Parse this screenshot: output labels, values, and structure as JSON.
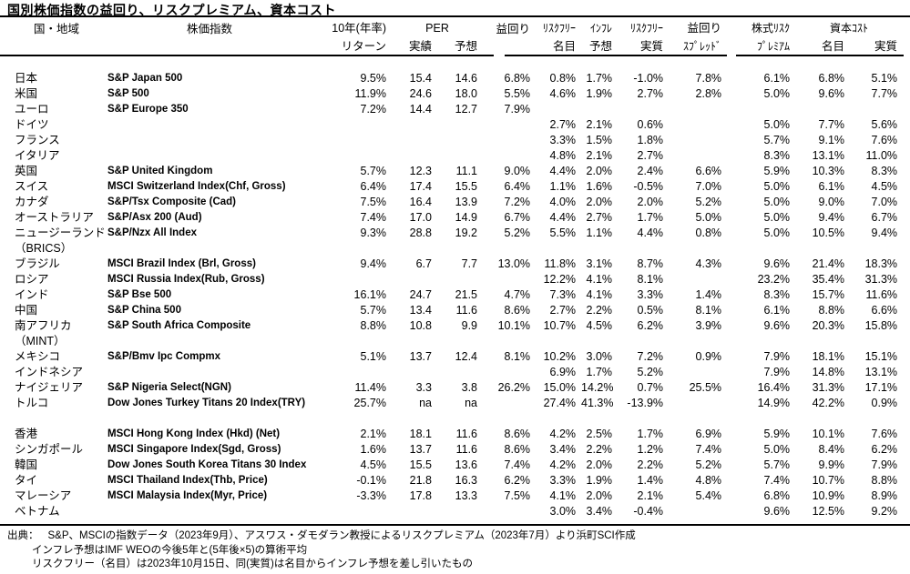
{
  "title": "国別株価指数の益回り、リスクプレミアム、資本コスト",
  "colors": {
    "text": "#000000",
    "background": "#ffffff"
  },
  "header": {
    "country": "国・地域",
    "index": "株価指数",
    "return10y_line1": "10年(年率)",
    "return10y_line2": "リターン",
    "per_group": "PER",
    "per_actual": "実績",
    "per_forecast": "予想",
    "earnings_yield": "益回り",
    "riskfree_nominal_line1": "ﾘｽｸﾌﾘｰ",
    "riskfree_nominal_line2": "名目",
    "inflation_line1": "ｲﾝﾌﾚ",
    "inflation_line2": "予想",
    "riskfree_real_line1": "ﾘｽｸﾌﾘｰ",
    "riskfree_real_line2": "実質",
    "yield_spread_line1": "益回り",
    "yield_spread_line2": "ｽﾌﾟﾚｯﾄﾞ",
    "erp_line1": "株式ﾘｽｸ",
    "erp_line2": "ﾌﾟﾚﾐｱﾑ",
    "capital_cost_group": "資本ｺｽﾄ",
    "capital_cost_nominal": "名目",
    "capital_cost_real": "実質"
  },
  "rows": [
    [
      "日本",
      "S&P Japan 500",
      "9.5%",
      "15.4",
      "14.6",
      "6.8%",
      "0.8%",
      "1.7%",
      "-1.0%",
      "7.8%",
      "6.1%",
      "6.8%",
      "5.1%"
    ],
    [
      "米国",
      "S&P 500",
      "11.9%",
      "24.6",
      "18.0",
      "5.5%",
      "4.6%",
      "1.9%",
      "2.7%",
      "2.8%",
      "5.0%",
      "9.6%",
      "7.7%"
    ],
    [
      "ユーロ",
      "S&P Europe 350",
      "7.2%",
      "14.4",
      "12.7",
      "7.9%",
      "",
      "",
      "",
      "",
      "",
      "",
      ""
    ],
    [
      "ドイツ",
      "",
      "",
      "",
      "",
      "",
      "2.7%",
      "2.1%",
      "0.6%",
      "",
      "5.0%",
      "7.7%",
      "5.6%"
    ],
    [
      "フランス",
      "",
      "",
      "",
      "",
      "",
      "3.3%",
      "1.5%",
      "1.8%",
      "",
      "5.7%",
      "9.1%",
      "7.6%"
    ],
    [
      "イタリア",
      "",
      "",
      "",
      "",
      "",
      "4.8%",
      "2.1%",
      "2.7%",
      "",
      "8.3%",
      "13.1%",
      "11.0%"
    ],
    [
      "英国",
      "S&P United Kingdom",
      "5.7%",
      "12.3",
      "11.1",
      "9.0%",
      "4.4%",
      "2.0%",
      "2.4%",
      "6.6%",
      "5.9%",
      "10.3%",
      "8.3%"
    ],
    [
      "スイス",
      "MSCI Switzerland Index(Chf, Gross)",
      "6.4%",
      "17.4",
      "15.5",
      "6.4%",
      "1.1%",
      "1.6%",
      "-0.5%",
      "7.0%",
      "5.0%",
      "6.1%",
      "4.5%"
    ],
    [
      "カナダ",
      "S&P/Tsx Composite (Cad)",
      "7.5%",
      "16.4",
      "13.9",
      "7.2%",
      "4.0%",
      "2.0%",
      "2.0%",
      "5.2%",
      "5.0%",
      "9.0%",
      "7.0%"
    ],
    [
      "オーストラリア",
      "S&P/Asx 200 (Aud)",
      "7.4%",
      "17.0",
      "14.9",
      "6.7%",
      "4.4%",
      "2.7%",
      "1.7%",
      "5.0%",
      "5.0%",
      "9.4%",
      "6.7%"
    ],
    [
      "ニュージーランド",
      "S&P/Nzx All Index",
      "9.3%",
      "28.8",
      "19.2",
      "5.2%",
      "5.5%",
      "1.1%",
      "4.4%",
      "0.8%",
      "5.0%",
      "10.5%",
      "9.4%"
    ],
    [
      "（BRICS）",
      "",
      "",
      "",
      "",
      "",
      "",
      "",
      "",
      "",
      "",
      "",
      ""
    ],
    [
      "ブラジル",
      "MSCI Brazil Index (Brl, Gross)",
      "9.4%",
      "6.7",
      "7.7",
      "13.0%",
      "11.8%",
      "3.1%",
      "8.7%",
      "4.3%",
      "9.6%",
      "21.4%",
      "18.3%"
    ],
    [
      "ロシア",
      "MSCI Russia Index(Rub, Gross)",
      "",
      "",
      "",
      "",
      "12.2%",
      "4.1%",
      "8.1%",
      "",
      "23.2%",
      "35.4%",
      "31.3%"
    ],
    [
      "インド",
      "S&P Bse 500",
      "16.1%",
      "24.7",
      "21.5",
      "4.7%",
      "7.3%",
      "4.1%",
      "3.3%",
      "1.4%",
      "8.3%",
      "15.7%",
      "11.6%"
    ],
    [
      "中国",
      "S&P China 500",
      "5.7%",
      "13.4",
      "11.6",
      "8.6%",
      "2.7%",
      "2.2%",
      "0.5%",
      "8.1%",
      "6.1%",
      "8.8%",
      "6.6%"
    ],
    [
      "南アフリカ",
      "S&P South Africa Composite",
      "8.8%",
      "10.8",
      "9.9",
      "10.1%",
      "10.7%",
      "4.5%",
      "6.2%",
      "3.9%",
      "9.6%",
      "20.3%",
      "15.8%"
    ],
    [
      "（MINT）",
      "",
      "",
      "",
      "",
      "",
      "",
      "",
      "",
      "",
      "",
      "",
      ""
    ],
    [
      "メキシコ",
      "S&P/Bmv Ipc Compmx",
      "5.1%",
      "13.7",
      "12.4",
      "8.1%",
      "10.2%",
      "3.0%",
      "7.2%",
      "0.9%",
      "7.9%",
      "18.1%",
      "15.1%"
    ],
    [
      "インドネシア",
      "",
      "",
      "",
      "",
      "",
      "6.9%",
      "1.7%",
      "5.2%",
      "",
      "7.9%",
      "14.8%",
      "13.1%"
    ],
    [
      "ナイジェリア",
      "S&P Nigeria Select(NGN)",
      "11.4%",
      "3.3",
      "3.8",
      "26.2%",
      "15.0%",
      "14.2%",
      "0.7%",
      "25.5%",
      "16.4%",
      "31.3%",
      "17.1%"
    ],
    [
      "トルコ",
      "Dow Jones Turkey Titans 20 Index(TRY)",
      "25.7%",
      "na",
      "na",
      "",
      "27.4%",
      "41.3%",
      "-13.9%",
      "",
      "14.9%",
      "42.2%",
      "0.9%"
    ],
    [
      "",
      "",
      "",
      "",
      "",
      "",
      "",
      "",
      "",
      "",
      "",
      "",
      ""
    ],
    [
      "香港",
      "MSCI Hong Kong Index  (Hkd) (Net)",
      "2.1%",
      "18.1",
      "11.6",
      "8.6%",
      "4.2%",
      "2.5%",
      "1.7%",
      "6.9%",
      "5.9%",
      "10.1%",
      "7.6%"
    ],
    [
      "シンガポール",
      "MSCI Singapore Index(Sgd, Gross)",
      "1.6%",
      "13.7",
      "11.6",
      "8.6%",
      "3.4%",
      "2.2%",
      "1.2%",
      "7.4%",
      "5.0%",
      "8.4%",
      "6.2%"
    ],
    [
      "韓国",
      "Dow Jones South Korea Titans 30 Index",
      "4.5%",
      "15.5",
      "13.6",
      "7.4%",
      "4.2%",
      "2.0%",
      "2.2%",
      "5.2%",
      "5.7%",
      "9.9%",
      "7.9%"
    ],
    [
      "タイ",
      "MSCI Thailand Index(Thb, Price)",
      "-0.1%",
      "21.8",
      "16.3",
      "6.2%",
      "3.3%",
      "1.9%",
      "1.4%",
      "4.8%",
      "7.4%",
      "10.7%",
      "8.8%"
    ],
    [
      "マレーシア",
      "MSCI Malaysia Index(Myr, Price)",
      "-3.3%",
      "17.8",
      "13.3",
      "7.5%",
      "4.1%",
      "2.0%",
      "2.1%",
      "5.4%",
      "6.8%",
      "10.9%",
      "8.9%"
    ],
    [
      "ベトナム",
      "",
      "",
      "",
      "",
      "",
      "3.0%",
      "3.4%",
      "-0.4%",
      "",
      "9.6%",
      "12.5%",
      "9.2%"
    ]
  ],
  "footnotes": {
    "source_label": "出典：",
    "source_text": "S&P、MSCIの指数データ（2023年9月）、アスワス・ダモダラン教授によるリスクプレミアム（2023年7月）より浜町SCI作成",
    "note2": "インフレ予想はIMF WEOの今後5年と(5年後×5)の算術平均",
    "note3": "リスクフリー（名目）は2023年10月15日、同(実質)は名目からインフレ予想を差し引いたもの"
  }
}
